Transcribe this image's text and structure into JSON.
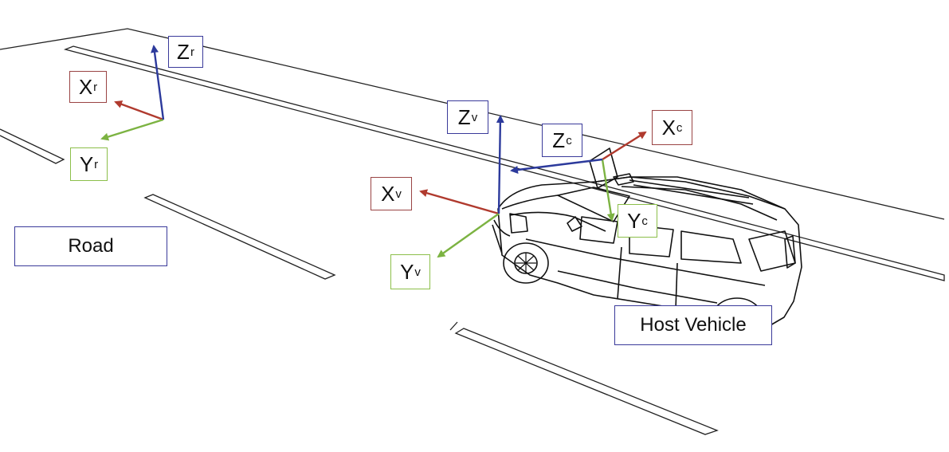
{
  "colors": {
    "x_axis": "#b03a2e",
    "y_axis": "#7cb342",
    "z_axis": "#2c3a9c",
    "drawing": "#111111"
  },
  "labels": {
    "road": "Road",
    "host_vehicle": "Host Vehicle"
  },
  "frames": {
    "road": {
      "x": {
        "letter": "X",
        "sub": "r"
      },
      "y": {
        "letter": "Y",
        "sub": "r"
      },
      "z": {
        "letter": "Z",
        "sub": "r"
      }
    },
    "vehicle": {
      "x": {
        "letter": "X",
        "sub": "v"
      },
      "y": {
        "letter": "Y",
        "sub": "v"
      },
      "z": {
        "letter": "Z",
        "sub": "v"
      }
    },
    "camera": {
      "x": {
        "letter": "X",
        "sub": "c"
      },
      "y": {
        "letter": "Y",
        "sub": "c"
      },
      "z": {
        "letter": "Z",
        "sub": "c"
      }
    }
  }
}
